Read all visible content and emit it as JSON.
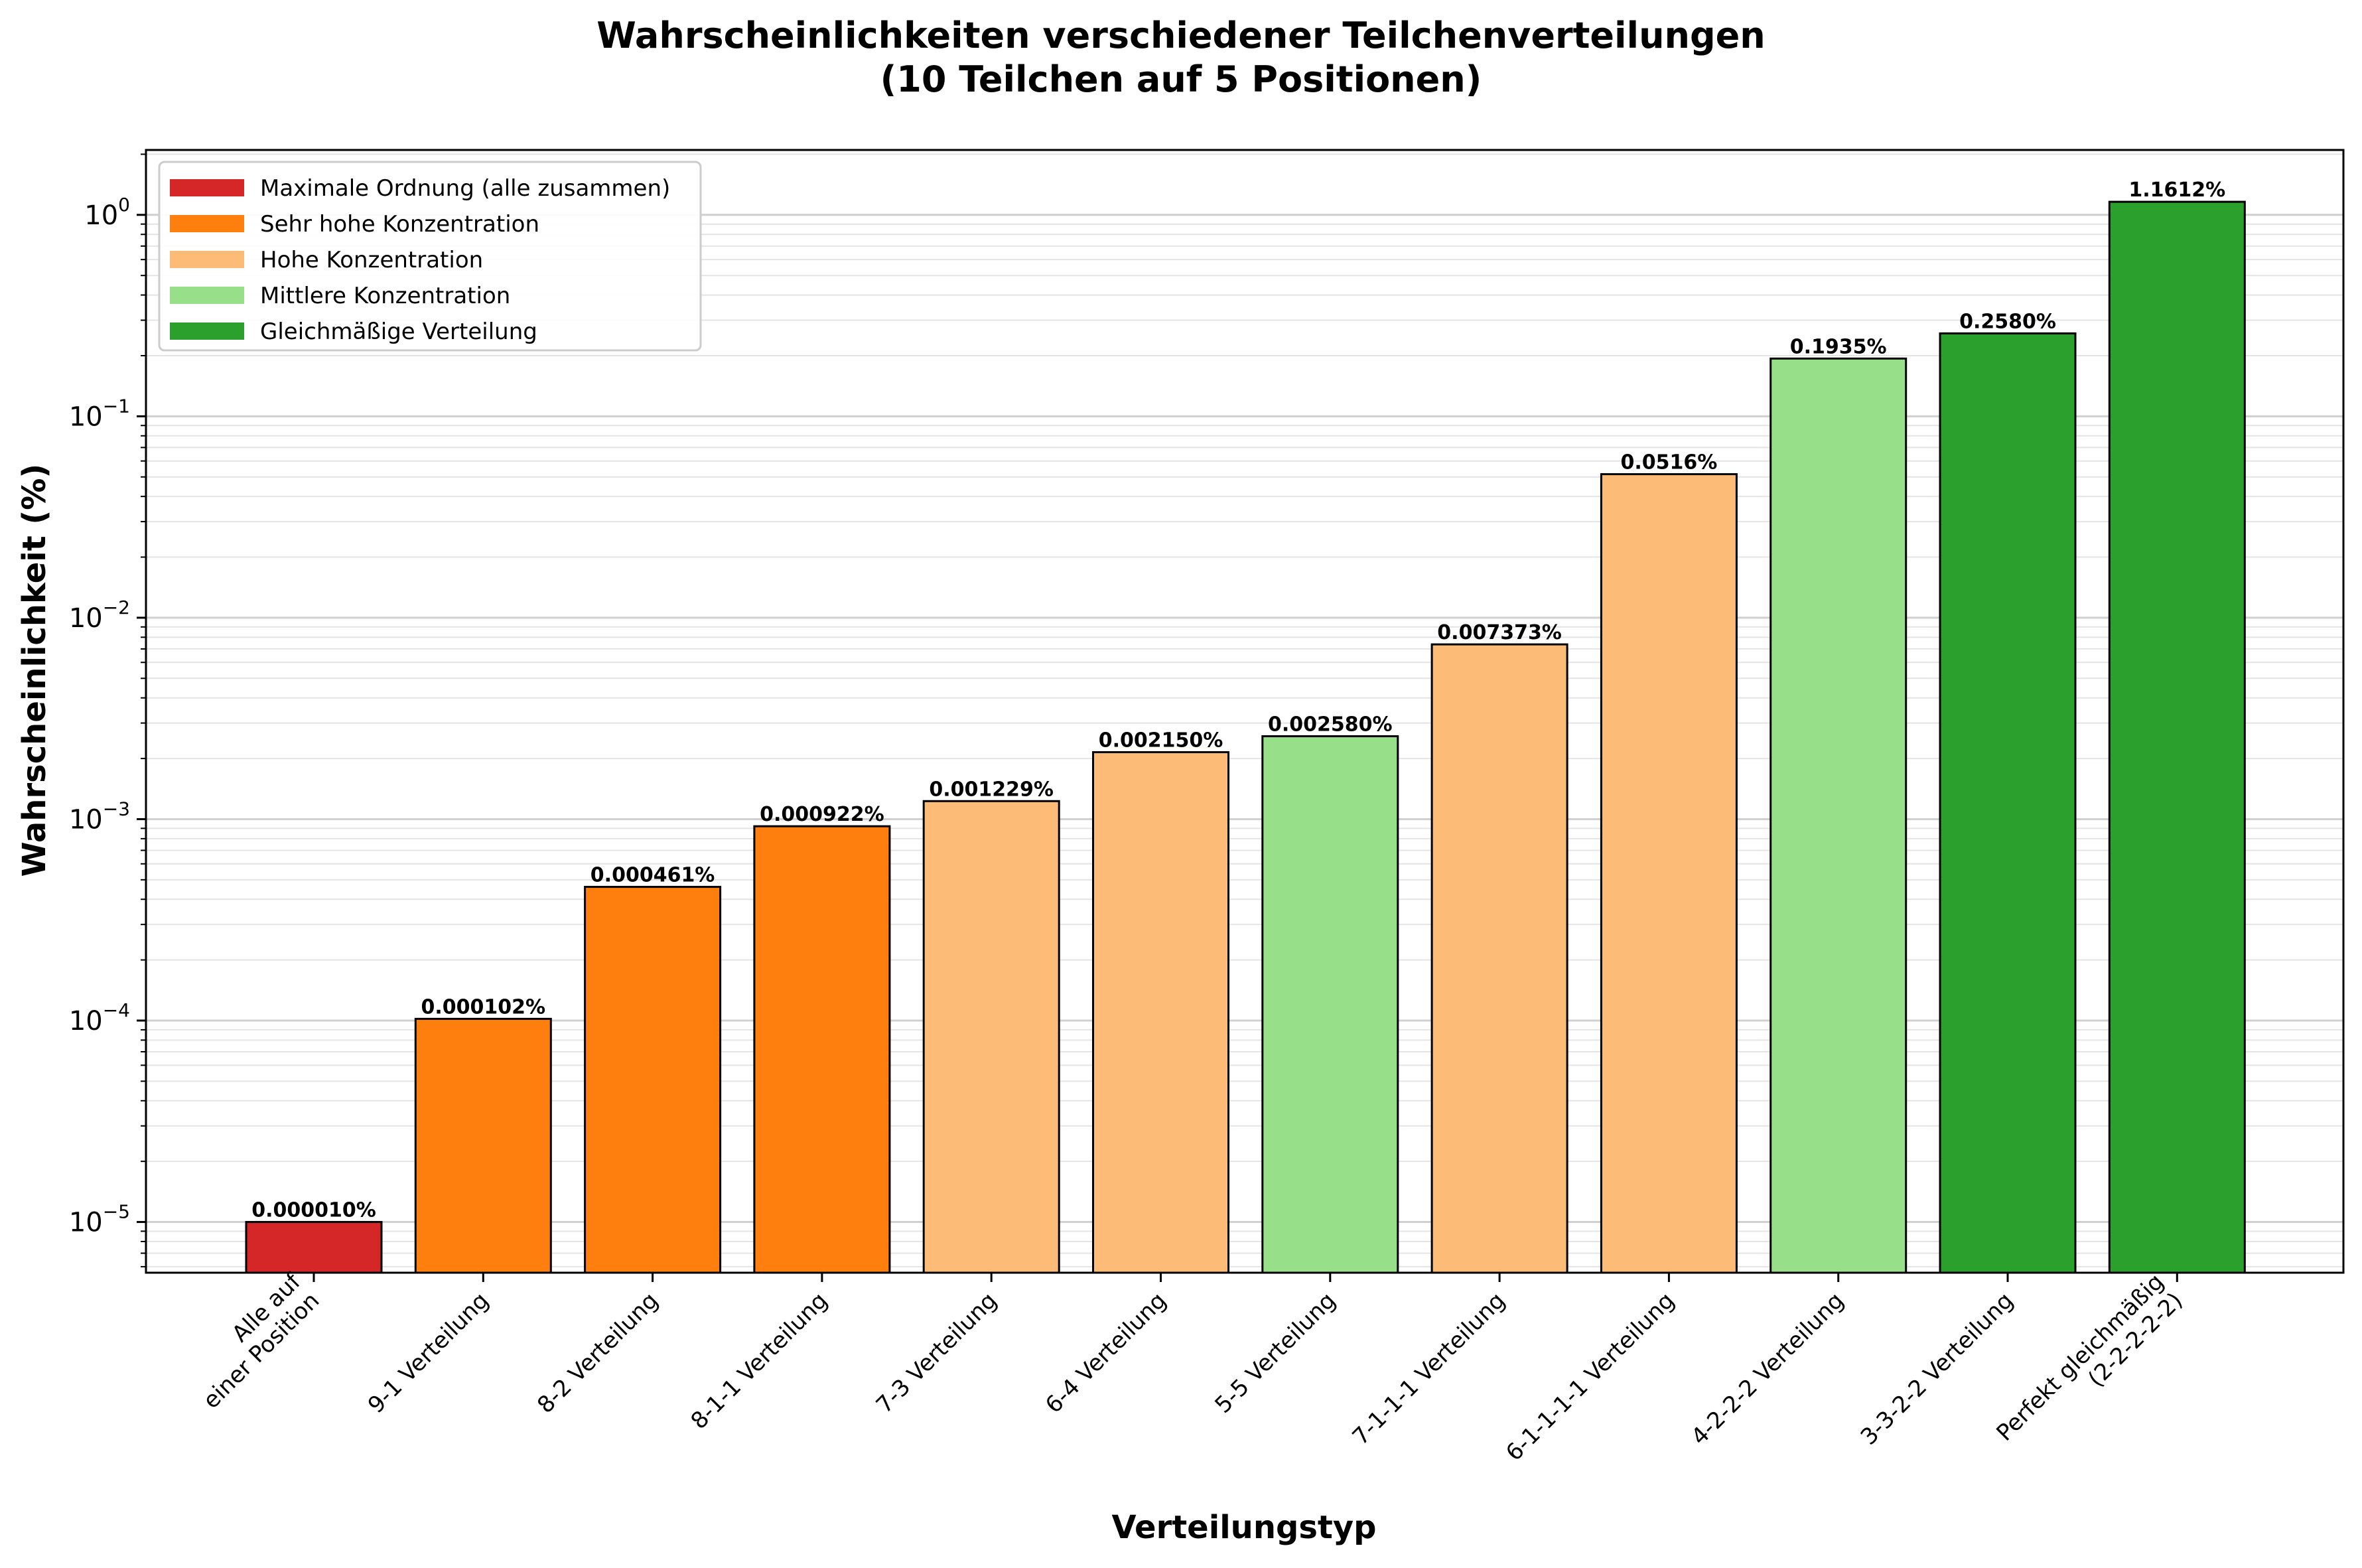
{
  "chart_data": {
    "type": "bar",
    "title_line1": "Wahrscheinlichkeiten verschiedener Teilchenverteilungen",
    "title_line2": "(10 Teilchen auf 5 Positionen)",
    "xlabel": "Verteilungstyp",
    "ylabel": "Wahrscheinlichkeit (%)",
    "yscale": "log",
    "ylim": [
      5.6e-06,
      2.1
    ],
    "grid": "y-major-and-minor",
    "legend_position": "top-left",
    "y_ticks": [
      {
        "base": "10",
        "exp": "−5",
        "value": 1e-05
      },
      {
        "base": "10",
        "exp": "−4",
        "value": 0.0001
      },
      {
        "base": "10",
        "exp": "−3",
        "value": 0.001
      },
      {
        "base": "10",
        "exp": "−2",
        "value": 0.01
      },
      {
        "base": "10",
        "exp": "−1",
        "value": 0.1
      },
      {
        "base": "10",
        "exp": "0",
        "value": 1
      }
    ],
    "groups": [
      {
        "name": "Maximale Ordnung (alle zusammen)",
        "color": "#d62728"
      },
      {
        "name": "Sehr hohe Konzentration",
        "color": "#ff7f0e"
      },
      {
        "name": "Hohe Konzentration",
        "color": "#fdbb78"
      },
      {
        "name": "Mittlere Konzentration",
        "color": "#98df8a"
      },
      {
        "name": "Gleichmäßige Verteilung",
        "color": "#2ca02c"
      }
    ],
    "bars": [
      {
        "category": [
          "Alle auf",
          "einer Position"
        ],
        "value": 1e-05,
        "label": "0.000010%",
        "group": 0
      },
      {
        "category": [
          "9-1 Verteilung"
        ],
        "value": 0.000102,
        "label": "0.000102%",
        "group": 1
      },
      {
        "category": [
          "8-2 Verteilung"
        ],
        "value": 0.000461,
        "label": "0.000461%",
        "group": 1
      },
      {
        "category": [
          "8-1-1 Verteilung"
        ],
        "value": 0.000922,
        "label": "0.000922%",
        "group": 1
      },
      {
        "category": [
          "7-3 Verteilung"
        ],
        "value": 0.001229,
        "label": "0.001229%",
        "group": 2
      },
      {
        "category": [
          "6-4 Verteilung"
        ],
        "value": 0.00215,
        "label": "0.002150%",
        "group": 2
      },
      {
        "category": [
          "5-5 Verteilung"
        ],
        "value": 0.00258,
        "label": "0.002580%",
        "group": 3
      },
      {
        "category": [
          "7-1-1-1 Verteilung"
        ],
        "value": 0.007373,
        "label": "0.007373%",
        "group": 2
      },
      {
        "category": [
          "6-1-1-1-1 Verteilung"
        ],
        "value": 0.0516,
        "label": "0.0516%",
        "group": 2
      },
      {
        "category": [
          "4-2-2-2 Verteilung"
        ],
        "value": 0.1935,
        "label": "0.1935%",
        "group": 3
      },
      {
        "category": [
          "3-3-2-2 Verteilung"
        ],
        "value": 0.258,
        "label": "0.2580%",
        "group": 4
      },
      {
        "category": [
          "Perfekt gleichmäßig",
          "(2-2-2-2-2)"
        ],
        "value": 1.1612,
        "label": "1.1612%",
        "group": 4
      }
    ]
  }
}
